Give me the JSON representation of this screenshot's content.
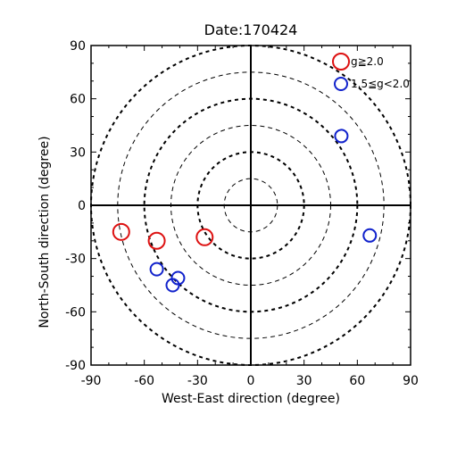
{
  "chart_data": {
    "type": "scatter",
    "title": "Date:170424",
    "xlabel": "West-East direction (degree)",
    "ylabel": "North-South direction (degree)",
    "xlim": [
      -90,
      90
    ],
    "ylim": [
      -90,
      90
    ],
    "x_ticks": [
      "-90",
      "-60",
      "-30",
      "0",
      "30",
      "60",
      "90"
    ],
    "y_ticks": [
      "90",
      "60",
      "30",
      "0",
      "-30",
      "-60",
      "-90"
    ],
    "x_tick_values": [
      -90,
      -60,
      -30,
      0,
      30,
      60,
      90
    ],
    "y_tick_values": [
      90,
      60,
      30,
      0,
      -30,
      -60,
      -90
    ],
    "grid": false,
    "legend_position": "top-right",
    "reference_circles": [
      {
        "radius": 15,
        "style": "thin-dashed"
      },
      {
        "radius": 30,
        "style": "thick-dashed"
      },
      {
        "radius": 45,
        "style": "thin-dashed"
      },
      {
        "radius": 60,
        "style": "thick-dashed"
      },
      {
        "radius": 75,
        "style": "thin-dashed"
      },
      {
        "radius": 90,
        "style": "thick-dashed"
      }
    ],
    "series": [
      {
        "name": "g≧2.0",
        "color": "#dd1111",
        "marker": "open-circle-large",
        "points": [
          {
            "x": -73,
            "y": -15
          },
          {
            "x": -53,
            "y": -20
          },
          {
            "x": -26,
            "y": -18
          }
        ]
      },
      {
        "name": "1.5≦g<2.0",
        "color": "#1122cc",
        "marker": "open-circle-small",
        "points": [
          {
            "x": 51,
            "y": 39
          },
          {
            "x": 67,
            "y": -17
          },
          {
            "x": -53,
            "y": -36
          },
          {
            "x": -44,
            "y": -45
          },
          {
            "x": -41,
            "y": -41
          }
        ]
      }
    ]
  }
}
